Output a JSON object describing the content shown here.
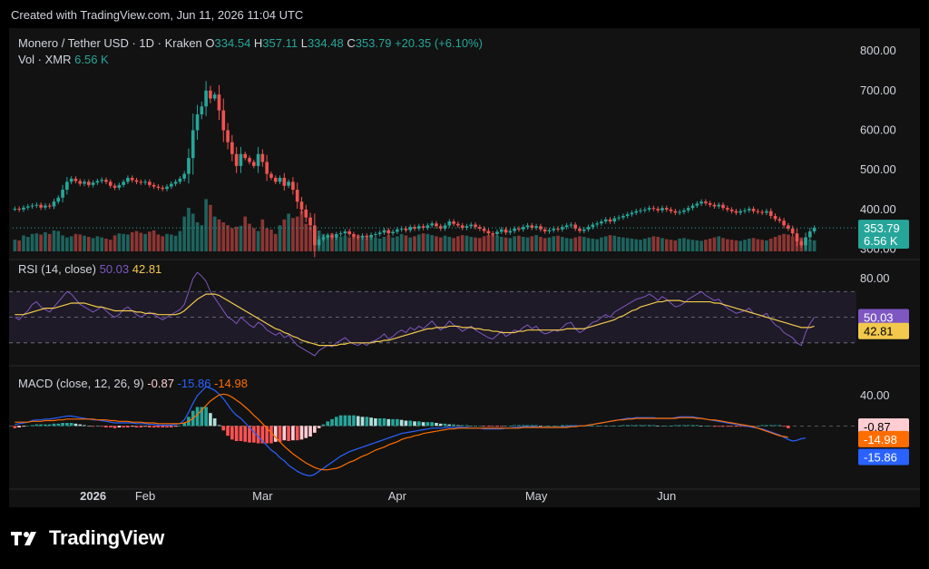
{
  "header_text": "Created with TradingView.com, Jun 11, 2026 11:04 UTC",
  "brand": "TradingView",
  "colors": {
    "up": "#26a69a",
    "down": "#ef5350",
    "rsi": "#7e57c2",
    "rsi_ma": "#f2c94c",
    "macd": "#2962ff",
    "signal": "#ff6d00",
    "bg": "#121212"
  },
  "chart_data": [
    {
      "type": "candlestick",
      "symbol": "Monero / Tether USD · 1D · Kraken",
      "ohlc": {
        "o": "334.54",
        "h": "357.11",
        "l": "334.48",
        "c": "353.79",
        "chg": "+20.35 (+6.10%)"
      },
      "volume_label": "Vol · XMR",
      "volume_value": "6.56 K",
      "last_price": "353.79",
      "y_ticks": [
        800,
        700,
        600,
        500,
        400,
        300
      ],
      "ylim": [
        290,
        830
      ],
      "x_ticks": [
        "2026",
        "Feb",
        "Mar",
        "Apr",
        "May",
        "Jun"
      ],
      "close_series": [
        402,
        400,
        405,
        408,
        410,
        412,
        405,
        410,
        408,
        420,
        430,
        450,
        470,
        478,
        472,
        465,
        470,
        462,
        468,
        472,
        475,
        470,
        460,
        455,
        462,
        470,
        480,
        474,
        470,
        468,
        470,
        462,
        458,
        455,
        452,
        458,
        465,
        470,
        478,
        490,
        530,
        600,
        640,
        660,
        700,
        680,
        690,
        650,
        600,
        570,
        540,
        510,
        540,
        530,
        520,
        510,
        540,
        520,
        490,
        480,
        470,
        480,
        460,
        470,
        450,
        420,
        400,
        380,
        360,
        310,
        325,
        330,
        335,
        330,
        338,
        340,
        345,
        338,
        332,
        330,
        334,
        330,
        336,
        338,
        342,
        348,
        340,
        344,
        350,
        352,
        348,
        356,
        352,
        358,
        354,
        360,
        365,
        358,
        352,
        360,
        370,
        364,
        360,
        354,
        358,
        362,
        356,
        352,
        346,
        340,
        338,
        344,
        350,
        342,
        346,
        352,
        350,
        356,
        360,
        354,
        358,
        350,
        345,
        348,
        352,
        350,
        356,
        360,
        362,
        352,
        346,
        350,
        356,
        362,
        365,
        370,
        375,
        370,
        378,
        380,
        384,
        388,
        392,
        396,
        398,
        400,
        404,
        402,
        398,
        404,
        400,
        396,
        392,
        394,
        398,
        404,
        410,
        415,
        420,
        416,
        412,
        408,
        412,
        404,
        400,
        396,
        392,
        396,
        398,
        402,
        396,
        394,
        392,
        396,
        384,
        376,
        372,
        360,
        352,
        340,
        320,
        310,
        330,
        345,
        354
      ],
      "volume_series": [
        40,
        38,
        55,
        50,
        60,
        62,
        58,
        66,
        60,
        72,
        70,
        55,
        48,
        52,
        60,
        58,
        54,
        50,
        46,
        52,
        48,
        44,
        40,
        55,
        62,
        60,
        58,
        66,
        70,
        64,
        60,
        68,
        72,
        58,
        52,
        60,
        58,
        54,
        70,
        120,
        150,
        130,
        100,
        90,
        180,
        160,
        120,
        110,
        100,
        90,
        80,
        85,
        88,
        120,
        95,
        80,
        70,
        110,
        80,
        75,
        60,
        90,
        110,
        130,
        115,
        120,
        140,
        95,
        85,
        80,
        72,
        60,
        58,
        62,
        55,
        50,
        54,
        48,
        52,
        56,
        50,
        46,
        52,
        48,
        44,
        50,
        56,
        48,
        52,
        60,
        55,
        48,
        52,
        58,
        62,
        60,
        56,
        52,
        48,
        54,
        50,
        46,
        52,
        56,
        54,
        50,
        48,
        46,
        52,
        56,
        60,
        54,
        50,
        48,
        46,
        52,
        54,
        50,
        48,
        52,
        56,
        50,
        46,
        48,
        52,
        54,
        50,
        46,
        44,
        48,
        52,
        50,
        46,
        44,
        42,
        48,
        52,
        56,
        54,
        50,
        48,
        46,
        44,
        42,
        40,
        44,
        48,
        52,
        50,
        46,
        42,
        40,
        38,
        44,
        46,
        42,
        40,
        38,
        36,
        40,
        44,
        48,
        52,
        46,
        42,
        40,
        38,
        36,
        40,
        44,
        46,
        42,
        40,
        38,
        44,
        50,
        56,
        60,
        58,
        52,
        46,
        48,
        44,
        40,
        38
      ]
    },
    {
      "type": "line",
      "label": "RSI (14, close)",
      "values": [
        "50.03",
        "42.81"
      ],
      "y_ticks": [
        80
      ],
      "ylim": [
        15,
        90
      ],
      "bands": [
        70,
        50,
        30
      ],
      "rsi_series": [
        50,
        48,
        52,
        55,
        60,
        62,
        58,
        56,
        54,
        58,
        62,
        66,
        70,
        68,
        64,
        60,
        58,
        56,
        54,
        56,
        58,
        55,
        52,
        50,
        52,
        56,
        58,
        55,
        52,
        50,
        52,
        54,
        52,
        50,
        48,
        50,
        52,
        54,
        56,
        60,
        70,
        80,
        85,
        82,
        78,
        70,
        65,
        60,
        55,
        50,
        48,
        45,
        50,
        47,
        44,
        42,
        46,
        44,
        40,
        38,
        36,
        38,
        34,
        36,
        32,
        28,
        26,
        24,
        22,
        20,
        24,
        26,
        28,
        27,
        30,
        32,
        34,
        31,
        29,
        28,
        30,
        28,
        31,
        32,
        34,
        37,
        33,
        35,
        38,
        40,
        38,
        42,
        40,
        43,
        41,
        44,
        47,
        43,
        40,
        43,
        47,
        44,
        42,
        39,
        41,
        43,
        40,
        38,
        36,
        34,
        33,
        36,
        39,
        35,
        37,
        40,
        39,
        42,
        44,
        41,
        43,
        39,
        37,
        38,
        40,
        39,
        42,
        45,
        46,
        41,
        38,
        40,
        43,
        46,
        47,
        50,
        52,
        50,
        54,
        56,
        58,
        60,
        62,
        64,
        65,
        66,
        68,
        66,
        63,
        66,
        64,
        61,
        58,
        59,
        61,
        64,
        66,
        68,
        70,
        67,
        65,
        63,
        64,
        60,
        57,
        55,
        53,
        54,
        55,
        57,
        53,
        52,
        51,
        53,
        48,
        44,
        42,
        38,
        36,
        34,
        30,
        28,
        38,
        45,
        50
      ],
      "ma_series": [
        52,
        52,
        52,
        53,
        54,
        55,
        56,
        57,
        57,
        57,
        58,
        59,
        60,
        61,
        61,
        61,
        61,
        60,
        59,
        58,
        58,
        57,
        56,
        55,
        55,
        55,
        55,
        55,
        54,
        54,
        53,
        53,
        53,
        52,
        52,
        52,
        52,
        52,
        53,
        55,
        58,
        61,
        64,
        66,
        68,
        68,
        68,
        67,
        65,
        63,
        61,
        59,
        57,
        55,
        53,
        51,
        49,
        47,
        45,
        43,
        41,
        40,
        38,
        37,
        35,
        34,
        32,
        31,
        30,
        29,
        28,
        28,
        28,
        28,
        28,
        29,
        29,
        30,
        30,
        30,
        30,
        30,
        30,
        31,
        31,
        32,
        32,
        33,
        34,
        35,
        36,
        37,
        38,
        39,
        40,
        41,
        41,
        42,
        42,
        42,
        43,
        43,
        43,
        42,
        42,
        42,
        41,
        41,
        40,
        40,
        39,
        39,
        38,
        38,
        38,
        38,
        39,
        39,
        40,
        40,
        40,
        40,
        40,
        40,
        40,
        40,
        40,
        41,
        41,
        41,
        41,
        41,
        42,
        43,
        44,
        45,
        46,
        47,
        48,
        50,
        51,
        53,
        55,
        56,
        58,
        59,
        60,
        61,
        62,
        62,
        63,
        63,
        63,
        63,
        62,
        62,
        62,
        62,
        62,
        62,
        62,
        61,
        61,
        60,
        59,
        58,
        57,
        56,
        55,
        54,
        53,
        52,
        51,
        50,
        49,
        48,
        47,
        46,
        45,
        44,
        43,
        42,
        42,
        42,
        43
      ]
    },
    {
      "type": "line",
      "label": "MACD (close, 12, 26, 9)",
      "values": [
        "-0.87",
        "-15.86",
        "-14.98"
      ],
      "y_ticks": [
        40
      ],
      "ylim": [
        -80,
        70
      ],
      "macd_series": [
        2,
        3,
        4,
        5,
        7,
        8,
        8,
        9,
        9,
        10,
        11,
        12,
        13,
        13,
        12,
        11,
        10,
        9,
        8,
        8,
        7,
        6,
        5,
        4,
        4,
        4,
        4,
        4,
        3,
        3,
        3,
        2,
        2,
        1,
        1,
        1,
        1,
        2,
        3,
        8,
        18,
        30,
        40,
        46,
        52,
        50,
        47,
        42,
        36,
        28,
        20,
        14,
        10,
        4,
        -2,
        -8,
        -14,
        -20,
        -26,
        -32,
        -36,
        -42,
        -46,
        -52,
        -56,
        -60,
        -63,
        -65,
        -66,
        -64,
        -60,
        -56,
        -52,
        -48,
        -44,
        -40,
        -37,
        -34,
        -32,
        -30,
        -28,
        -26,
        -24,
        -22,
        -20,
        -18,
        -16,
        -14,
        -12,
        -10,
        -9,
        -8,
        -7,
        -6,
        -5,
        -4,
        -3,
        -3,
        -3,
        -2,
        -2,
        -2,
        -2,
        -2,
        -2,
        -3,
        -3,
        -3,
        -4,
        -4,
        -4,
        -4,
        -4,
        -3,
        -3,
        -2,
        -2,
        -1,
        -1,
        -1,
        -1,
        -2,
        -2,
        -2,
        -2,
        -2,
        -1,
        -1,
        0,
        0,
        0,
        0,
        1,
        2,
        3,
        4,
        5,
        6,
        7,
        8,
        9,
        10,
        10,
        11,
        11,
        11,
        11,
        11,
        10,
        10,
        10,
        10,
        11,
        12,
        12,
        12,
        12,
        11,
        10,
        9,
        8,
        7,
        6,
        5,
        4,
        3,
        2,
        1,
        0,
        -1,
        -2,
        -3,
        -4,
        -6,
        -8,
        -10,
        -12,
        -15,
        -18,
        -20,
        -19,
        -17,
        -16
      ],
      "signal_series": [
        5,
        5,
        5,
        5,
        6,
        6,
        6,
        7,
        7,
        7,
        8,
        8,
        9,
        9,
        9,
        9,
        9,
        9,
        9,
        8,
        8,
        8,
        7,
        7,
        6,
        6,
        6,
        5,
        5,
        5,
        4,
        4,
        4,
        3,
        3,
        3,
        3,
        3,
        3,
        4,
        6,
        10,
        15,
        21,
        27,
        33,
        37,
        41,
        42,
        41,
        38,
        34,
        30,
        25,
        20,
        14,
        9,
        3,
        -3,
        -9,
        -15,
        -21,
        -27,
        -32,
        -37,
        -41,
        -45,
        -49,
        -52,
        -55,
        -57,
        -58,
        -58,
        -57,
        -56,
        -54,
        -51,
        -48,
        -46,
        -43,
        -40,
        -38,
        -35,
        -32,
        -30,
        -28,
        -25,
        -23,
        -21,
        -18,
        -16,
        -15,
        -13,
        -12,
        -10,
        -9,
        -8,
        -7,
        -6,
        -5,
        -4,
        -4,
        -3,
        -3,
        -3,
        -3,
        -3,
        -3,
        -3,
        -3,
        -3,
        -3,
        -3,
        -3,
        -3,
        -3,
        -3,
        -2,
        -2,
        -2,
        -2,
        -2,
        -2,
        -2,
        -2,
        -2,
        -2,
        -2,
        -1,
        -1,
        0,
        0,
        1,
        2,
        3,
        4,
        5,
        6,
        7,
        8,
        8,
        9,
        9,
        10,
        10,
        10,
        10,
        10,
        10,
        10,
        10,
        10,
        10,
        11,
        11,
        11,
        11,
        10,
        10,
        9,
        8,
        8,
        7,
        6,
        5,
        4,
        3,
        2,
        1,
        0,
        -1,
        -3,
        -5,
        -7,
        -9,
        -11,
        -13,
        -14,
        -15
      ]
    }
  ]
}
